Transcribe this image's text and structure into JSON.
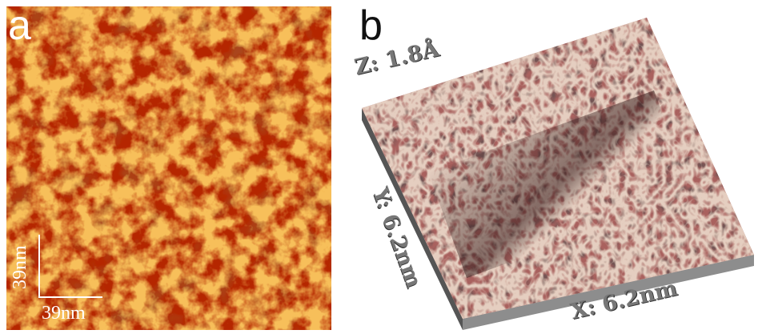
{
  "panel_a": {
    "letter": "a",
    "scale_vertical": "39nm",
    "scale_horizontal": "39nm",
    "colors": {
      "base": "#b82600",
      "dark": "#6e1402",
      "bright": "#ef8a1e"
    }
  },
  "panel_b": {
    "letter": "b",
    "z_label": "Z: 1.8Å",
    "y_label": "Y: 6.2nm",
    "x_label": "X: 6.2nm",
    "colors": {
      "surface": "#b86a68",
      "shadow": "#3a2220",
      "highlight": "#f1d6b0",
      "side": "#9a9a9a"
    }
  }
}
